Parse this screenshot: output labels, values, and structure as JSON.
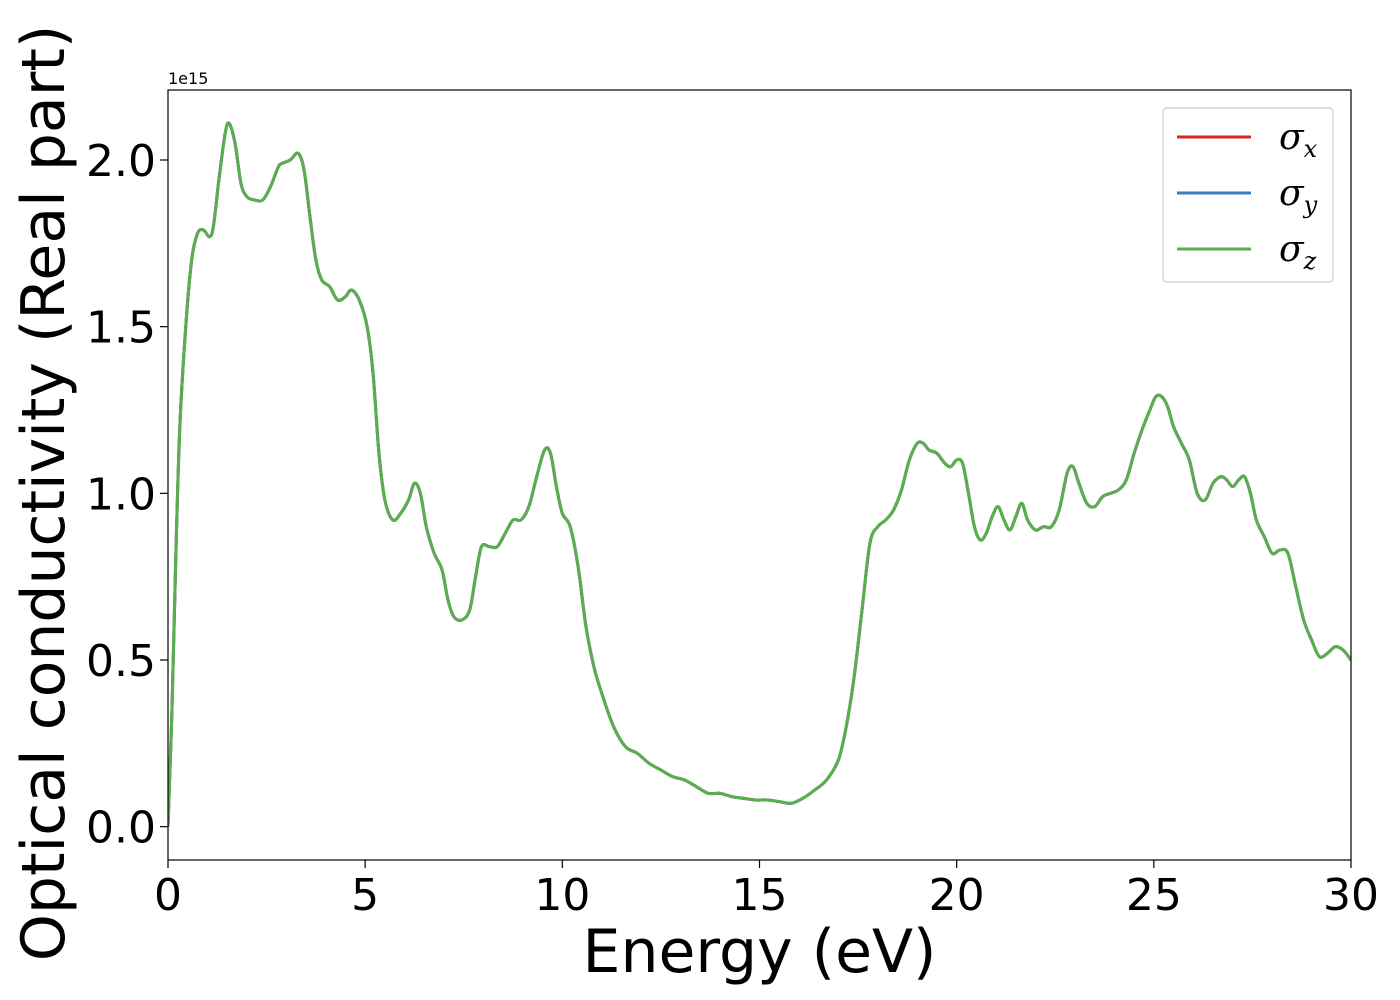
{
  "chart_data": {
    "type": "line",
    "title": "",
    "xlabel": "Energy (eV)",
    "ylabel": "Optical conductivity (Real part)",
    "y_offset_label": "1e15",
    "xlim": [
      0,
      30
    ],
    "ylim": [
      -0.1,
      2.21
    ],
    "x_ticks": [
      0,
      5,
      10,
      15,
      20,
      25,
      30
    ],
    "x_tick_labels": [
      "0",
      "5",
      "10",
      "15",
      "20",
      "25",
      "30"
    ],
    "y_ticks": [
      0.0,
      0.5,
      1.0,
      1.5,
      2.0
    ],
    "y_tick_labels": [
      "0.0",
      "0.5",
      "1.0",
      "1.5",
      "2.0"
    ],
    "grid": false,
    "legend_placement": "upper-right",
    "series": [
      {
        "name": "σx",
        "symbol": "σ",
        "subscript": "x",
        "color": "#d62728"
      },
      {
        "name": "σy",
        "symbol": "σ",
        "subscript": "y",
        "color": "#3b7dbf"
      },
      {
        "name": "σz",
        "symbol": "σ",
        "subscript": "z",
        "color": "#5aae4d"
      }
    ],
    "shared_curve_note_hidden": false,
    "x": [
      0.0,
      0.1,
      0.2,
      0.3,
      0.45,
      0.6,
      0.75,
      0.9,
      1.05,
      1.15,
      1.3,
      1.45,
      1.55,
      1.7,
      1.85,
      2.0,
      2.2,
      2.4,
      2.6,
      2.8,
      2.9,
      3.1,
      3.3,
      3.45,
      3.6,
      3.75,
      3.9,
      4.1,
      4.3,
      4.5,
      4.65,
      4.85,
      5.05,
      5.2,
      5.35,
      5.5,
      5.7,
      5.9,
      6.1,
      6.25,
      6.4,
      6.55,
      6.75,
      6.95,
      7.1,
      7.25,
      7.45,
      7.65,
      7.8,
      7.95,
      8.15,
      8.35,
      8.55,
      8.75,
      8.95,
      9.15,
      9.35,
      9.55,
      9.7,
      9.85,
      10.0,
      10.2,
      10.4,
      10.6,
      10.8,
      11.0,
      11.3,
      11.6,
      11.9,
      12.2,
      12.5,
      12.8,
      13.1,
      13.4,
      13.7,
      14.0,
      14.3,
      14.6,
      14.9,
      15.2,
      15.5,
      15.8,
      16.1,
      16.4,
      16.7,
      17.0,
      17.2,
      17.4,
      17.6,
      17.8,
      18.0,
      18.2,
      18.4,
      18.6,
      18.8,
      19.0,
      19.15,
      19.3,
      19.5,
      19.7,
      19.85,
      20.0,
      20.15,
      20.3,
      20.45,
      20.6,
      20.75,
      20.9,
      21.05,
      21.2,
      21.35,
      21.5,
      21.65,
      21.8,
      22.0,
      22.2,
      22.4,
      22.6,
      22.8,
      22.95,
      23.1,
      23.3,
      23.5,
      23.7,
      23.9,
      24.1,
      24.3,
      24.5,
      24.7,
      24.9,
      25.05,
      25.2,
      25.35,
      25.5,
      25.7,
      25.9,
      26.1,
      26.3,
      26.5,
      26.7,
      26.85,
      27.0,
      27.15,
      27.3,
      27.45,
      27.6,
      27.8,
      28.0,
      28.2,
      28.4,
      28.6,
      28.8,
      29.0,
      29.2,
      29.4,
      29.6,
      29.8,
      30.0
    ],
    "values": [
      0.0,
      0.35,
      0.82,
      1.2,
      1.5,
      1.7,
      1.78,
      1.79,
      1.77,
      1.8,
      1.95,
      2.08,
      2.11,
      2.05,
      1.93,
      1.89,
      1.88,
      1.88,
      1.92,
      1.98,
      1.99,
      2.0,
      2.02,
      1.97,
      1.83,
      1.7,
      1.64,
      1.62,
      1.58,
      1.59,
      1.61,
      1.58,
      1.5,
      1.36,
      1.12,
      0.98,
      0.92,
      0.94,
      0.98,
      1.03,
      1.0,
      0.9,
      0.82,
      0.77,
      0.68,
      0.63,
      0.62,
      0.65,
      0.75,
      0.84,
      0.84,
      0.84,
      0.88,
      0.92,
      0.92,
      0.96,
      1.05,
      1.13,
      1.12,
      1.02,
      0.94,
      0.9,
      0.78,
      0.6,
      0.48,
      0.4,
      0.3,
      0.24,
      0.22,
      0.19,
      0.17,
      0.15,
      0.14,
      0.12,
      0.1,
      0.1,
      0.09,
      0.085,
      0.08,
      0.08,
      0.075,
      0.07,
      0.085,
      0.11,
      0.14,
      0.2,
      0.3,
      0.45,
      0.65,
      0.85,
      0.9,
      0.92,
      0.95,
      1.01,
      1.1,
      1.15,
      1.15,
      1.13,
      1.12,
      1.09,
      1.08,
      1.1,
      1.09,
      1.0,
      0.9,
      0.86,
      0.88,
      0.93,
      0.96,
      0.92,
      0.89,
      0.93,
      0.97,
      0.92,
      0.89,
      0.9,
      0.9,
      0.95,
      1.06,
      1.08,
      1.03,
      0.97,
      0.96,
      0.99,
      1.0,
      1.01,
      1.04,
      1.12,
      1.19,
      1.25,
      1.29,
      1.29,
      1.26,
      1.2,
      1.15,
      1.1,
      1.0,
      0.98,
      1.03,
      1.05,
      1.04,
      1.02,
      1.04,
      1.05,
      1.0,
      0.92,
      0.87,
      0.82,
      0.83,
      0.82,
      0.72,
      0.62,
      0.56,
      0.51,
      0.52,
      0.54,
      0.53,
      0.5
    ]
  }
}
